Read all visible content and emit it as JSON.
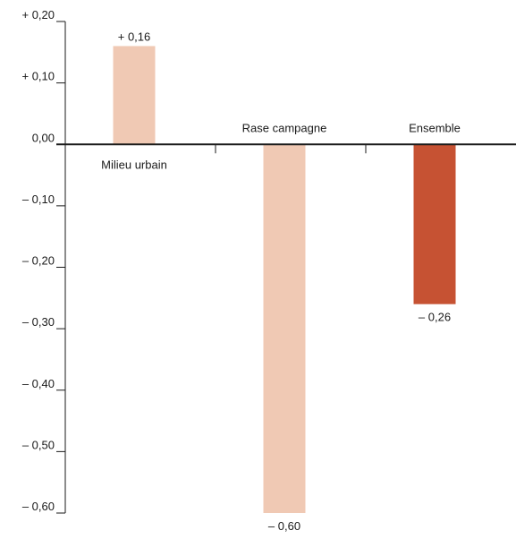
{
  "chart_data": {
    "type": "bar",
    "categories": [
      "Milieu urbain",
      "Rase campagne",
      "Ensemble"
    ],
    "values": [
      0.16,
      -0.6,
      -0.26
    ],
    "data_labels": [
      "+ 0,16",
      "– 0,60",
      "– 0,26"
    ],
    "ylim": [
      -0.6,
      0.2
    ],
    "yticks": [
      0.2,
      0.1,
      0.0,
      -0.1,
      -0.2,
      -0.3,
      -0.4,
      -0.5,
      -0.6
    ],
    "ytick_labels": [
      "+ 0,20",
      "+ 0,10",
      "0,00",
      "– 0,10",
      "– 0,20",
      "– 0,30",
      "– 0,40",
      "– 0,50",
      "– 0,60"
    ],
    "grid": false,
    "legend": "none",
    "colors": [
      "#f0c9b4",
      "#f0c9b4",
      "#c65233"
    ],
    "axis_color": "#1a1a1a"
  }
}
